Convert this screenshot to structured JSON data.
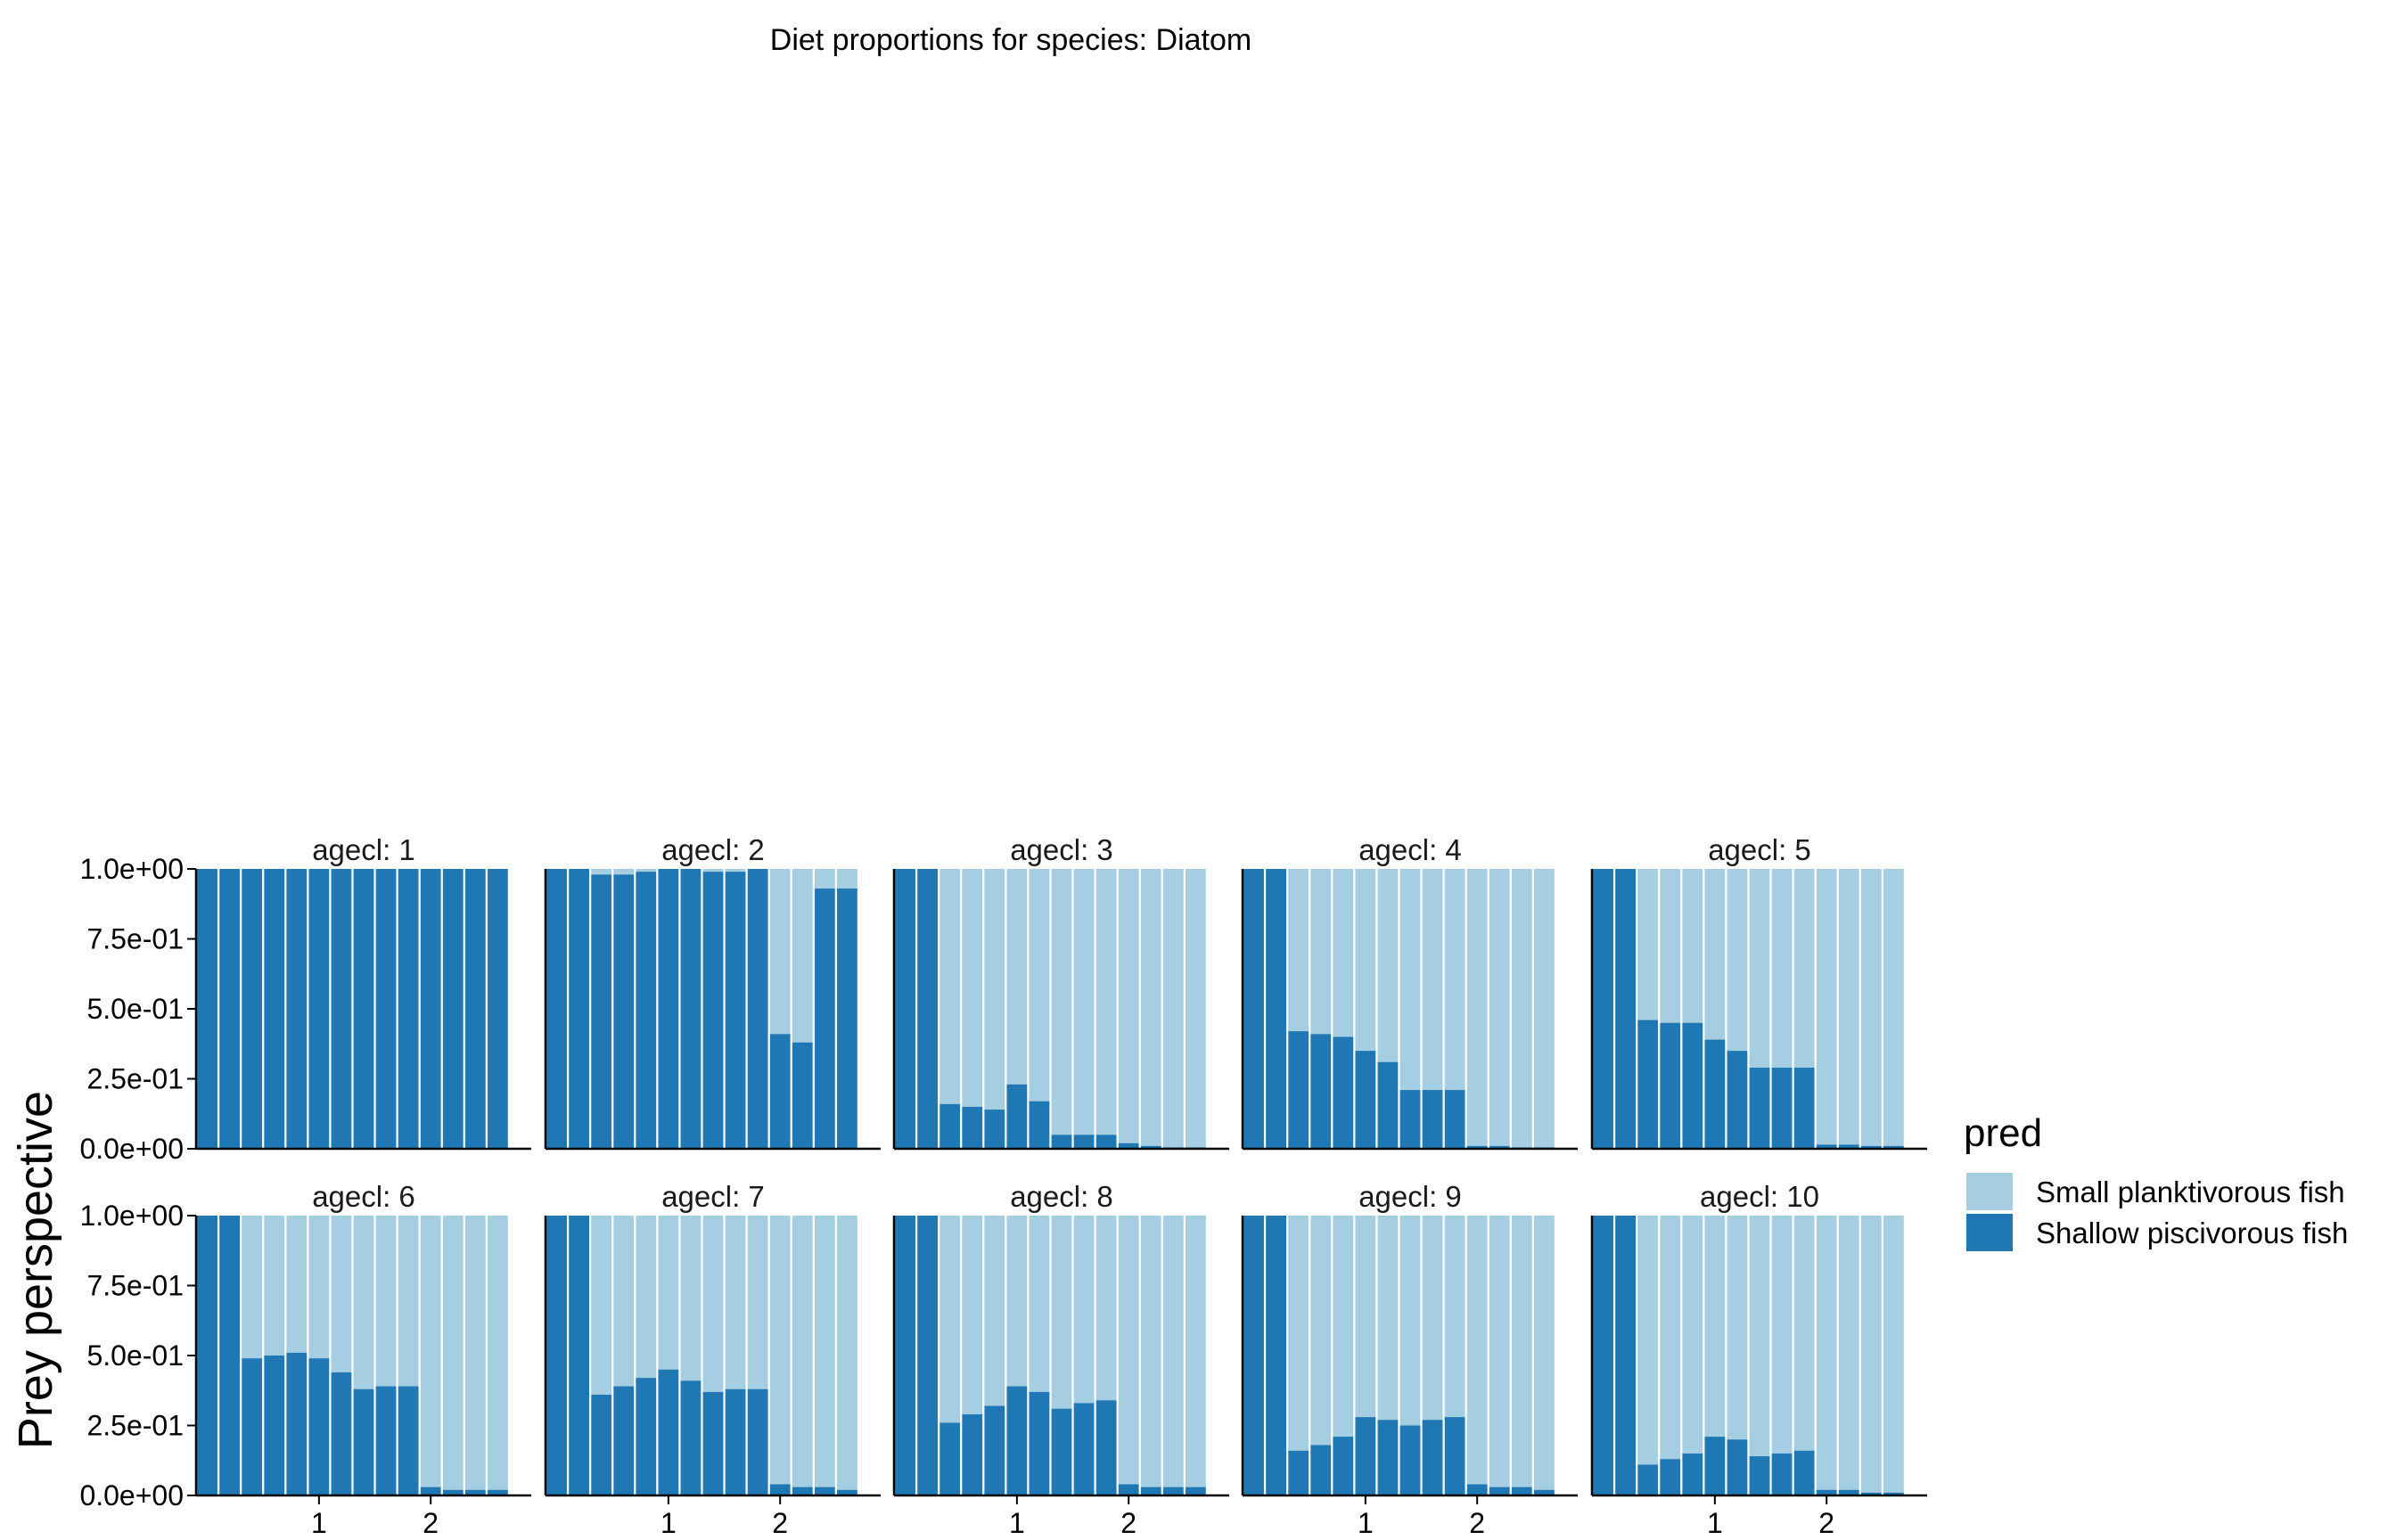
{
  "chart_data": {
    "type": "bar",
    "stacked": true,
    "title": "Diet proportions for species: Diatom",
    "ylabel": "Prey perspective",
    "xlabel": "",
    "ylim": [
      0,
      1
    ],
    "y_ticks": [
      0,
      0.25,
      0.5,
      0.75,
      1.0
    ],
    "y_tick_labels": [
      "0.0e+00",
      "2.5e-01",
      "5.0e-01",
      "7.5e-01",
      "1.0e+00"
    ],
    "x_tick_labels": [
      "1",
      "2"
    ],
    "x_tick_positions": [
      1,
      2
    ],
    "bars_per_panel": 14,
    "bar_x_start": 0.0,
    "bar_x_step": 0.2,
    "x_range": [
      -0.1,
      2.9
    ],
    "facet_label_prefix": "agecl: ",
    "legend": {
      "title": "pred",
      "position": "right",
      "items": [
        {
          "name": "Small planktivorous fish",
          "color": "#A6CEE3"
        },
        {
          "name": "Shallow piscivorous fish",
          "color": "#1F78B4"
        }
      ]
    },
    "colors": {
      "small_planktivorous": "#A6CEE3",
      "shallow_piscivorous": "#1F78B4"
    },
    "panels": [
      {
        "agecl": "1",
        "shallow_piscivorous": [
          1.0,
          1.0,
          1.0,
          1.0,
          1.0,
          1.0,
          1.0,
          1.0,
          1.0,
          1.0,
          1.0,
          1.0,
          1.0,
          1.0
        ]
      },
      {
        "agecl": "2",
        "shallow_piscivorous": [
          1.0,
          1.0,
          0.98,
          0.98,
          0.99,
          1.0,
          1.0,
          0.99,
          0.99,
          1.0,
          0.41,
          0.38,
          0.93,
          0.93
        ]
      },
      {
        "agecl": "3",
        "shallow_piscivorous": [
          1.0,
          1.0,
          0.16,
          0.15,
          0.14,
          0.23,
          0.17,
          0.05,
          0.05,
          0.05,
          0.02,
          0.01,
          0.005,
          0.005
        ]
      },
      {
        "agecl": "4",
        "shallow_piscivorous": [
          1.0,
          1.0,
          0.42,
          0.41,
          0.4,
          0.35,
          0.31,
          0.21,
          0.21,
          0.21,
          0.01,
          0.01,
          0.005,
          0.005
        ]
      },
      {
        "agecl": "5",
        "shallow_piscivorous": [
          1.0,
          1.0,
          0.46,
          0.45,
          0.45,
          0.39,
          0.35,
          0.29,
          0.29,
          0.29,
          0.015,
          0.015,
          0.01,
          0.01
        ]
      },
      {
        "agecl": "6",
        "shallow_piscivorous": [
          1.0,
          1.0,
          0.49,
          0.5,
          0.51,
          0.49,
          0.44,
          0.38,
          0.39,
          0.39,
          0.03,
          0.02,
          0.02,
          0.02
        ]
      },
      {
        "agecl": "7",
        "shallow_piscivorous": [
          1.0,
          1.0,
          0.36,
          0.39,
          0.42,
          0.45,
          0.41,
          0.37,
          0.38,
          0.38,
          0.04,
          0.03,
          0.03,
          0.02
        ]
      },
      {
        "agecl": "8",
        "shallow_piscivorous": [
          1.0,
          1.0,
          0.26,
          0.29,
          0.32,
          0.39,
          0.37,
          0.31,
          0.33,
          0.34,
          0.04,
          0.03,
          0.03,
          0.03
        ]
      },
      {
        "agecl": "9",
        "shallow_piscivorous": [
          1.0,
          1.0,
          0.16,
          0.18,
          0.21,
          0.28,
          0.27,
          0.25,
          0.27,
          0.28,
          0.04,
          0.03,
          0.03,
          0.02
        ]
      },
      {
        "agecl": "10",
        "shallow_piscivorous": [
          1.0,
          1.0,
          0.11,
          0.13,
          0.15,
          0.21,
          0.2,
          0.14,
          0.15,
          0.16,
          0.02,
          0.02,
          0.01,
          0.01
        ]
      }
    ]
  }
}
